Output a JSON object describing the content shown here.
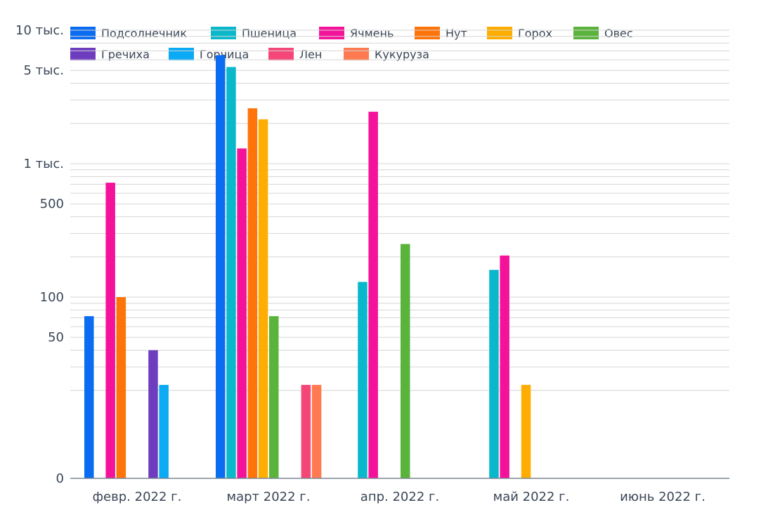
{
  "chart_data": {
    "type": "bar",
    "title": "",
    "xlabel": "",
    "ylabel": "",
    "yscale": "log",
    "legend_position": "top-left",
    "grid": true,
    "categories": [
      "февр. 2022 г.",
      "март 2022 г.",
      "апр. 2022 г.",
      "май 2022 г.",
      "июнь 2022 г."
    ],
    "y_ticks": [
      {
        "value": 0,
        "label": "0"
      },
      {
        "value": 50,
        "label": "50"
      },
      {
        "value": 100,
        "label": "100"
      },
      {
        "value": 500,
        "label": "500"
      },
      {
        "value": 1000,
        "label": "1 тыс."
      },
      {
        "value": 5000,
        "label": "5 тыс."
      },
      {
        "value": 10000,
        "label": "10 тыс."
      }
    ],
    "series": [
      {
        "name": "Подсолнечник",
        "color": "#0a6cf0",
        "values": [
          72,
          6500,
          null,
          null,
          null
        ]
      },
      {
        "name": "Пшеница",
        "color": "#0ab8cc",
        "values": [
          null,
          5300,
          130,
          160,
          null
        ]
      },
      {
        "name": "Ячмень",
        "color": "#f5129a",
        "values": [
          720,
          1300,
          2450,
          205,
          null
        ]
      },
      {
        "name": "Нут",
        "color": "#ff7408",
        "values": [
          100,
          2600,
          null,
          null,
          null
        ]
      },
      {
        "name": "Горох",
        "color": "#ffad00",
        "values": [
          null,
          2150,
          null,
          22,
          null
        ]
      },
      {
        "name": "Овес",
        "color": "#5ab43c",
        "values": [
          null,
          72,
          250,
          null,
          null
        ]
      },
      {
        "name": "Гречиха",
        "color": "#6e3cbe",
        "values": [
          40,
          null,
          null,
          null,
          null
        ]
      },
      {
        "name": "Горчица",
        "color": "#0aaaf5",
        "values": [
          22,
          null,
          null,
          null,
          null
        ]
      },
      {
        "name": "Лен",
        "color": "#f54678",
        "values": [
          null,
          22,
          null,
          null,
          null
        ]
      },
      {
        "name": "Кукуруза",
        "color": "#ff7a50",
        "values": [
          null,
          22,
          null,
          null,
          null
        ]
      }
    ]
  }
}
